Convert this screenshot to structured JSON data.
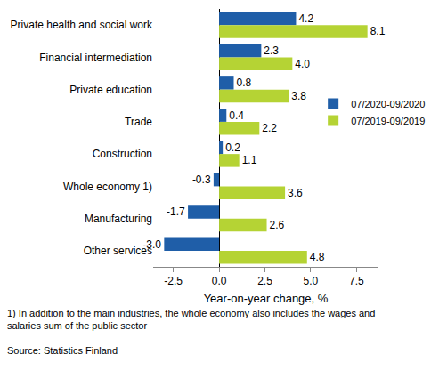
{
  "chart_data": {
    "type": "bar",
    "orientation": "horizontal",
    "categories": [
      "Private health and social work",
      "Financial intermediation",
      "Private education",
      "Trade",
      "Construction",
      "Whole economy 1)",
      "Manufacturing",
      "Other services"
    ],
    "series": [
      {
        "name": "07/2020-09/2020",
        "color": "#1f5ea8",
        "values": [
          4.2,
          2.3,
          0.8,
          0.4,
          0.2,
          -0.3,
          -1.7,
          -3.0
        ],
        "value_labels": [
          "4.2",
          "2.3",
          "0.8",
          "0.4",
          "0.2",
          "-0.3",
          "-1.7",
          "-3.0"
        ]
      },
      {
        "name": "07/2019-09/2019",
        "color": "#b5d334",
        "values": [
          8.1,
          4.0,
          3.8,
          2.2,
          1.1,
          3.6,
          2.6,
          4.8
        ],
        "value_labels": [
          "8.1",
          "4.0",
          "3.8",
          "2.2",
          "1.1",
          "3.6",
          "2.6",
          "4.8"
        ]
      }
    ],
    "x_label": "Year-on-year change, %",
    "xlim": [
      -3.6,
      8.7
    ],
    "xticks": [
      {
        "value": -2.5,
        "label": "-2.5"
      },
      {
        "value": 0,
        "label": "0.0"
      },
      {
        "value": 2.5,
        "label": "2.5"
      },
      {
        "value": 5,
        "label": "5.0"
      },
      {
        "value": 7.5,
        "label": "7.5"
      }
    ],
    "grid": false,
    "legend": "right",
    "data_labels": true,
    "footnote": [
      "1) In addition to the main industries, the whole economy also includes the wages and",
      "salaries sum of the public sector"
    ],
    "source": "Source: Statistics Finland"
  }
}
